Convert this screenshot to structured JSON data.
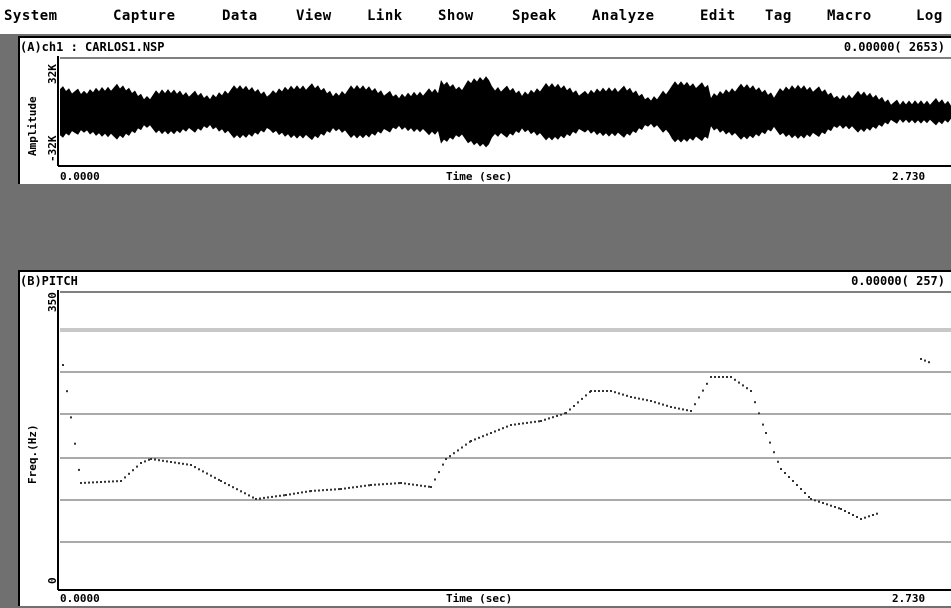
{
  "menu": [
    "System",
    "Capture",
    "Data",
    "View",
    "Link",
    "Show",
    "Speak",
    "Analyze",
    "Edit",
    "Tag",
    "Macro",
    "Log"
  ],
  "wave": {
    "title": "(A)ch1 : CARLOS1.NSP",
    "cursor": "0.00000(   2653)",
    "ylabel": "Amplitude",
    "ymax": "32K",
    "ymin": "-32K",
    "xmin": "0.0000",
    "xlabel": "Time (sec)",
    "xmax": "2.730"
  },
  "pitch": {
    "title": "(B)PITCH",
    "cursor": "0.00000(   257)",
    "ylabel": "Freq.(Hz)",
    "ymax": "350",
    "ymin": "0",
    "xmin": "0.0000",
    "xlabel": "Time (sec)",
    "xmax": "2.730"
  }
}
